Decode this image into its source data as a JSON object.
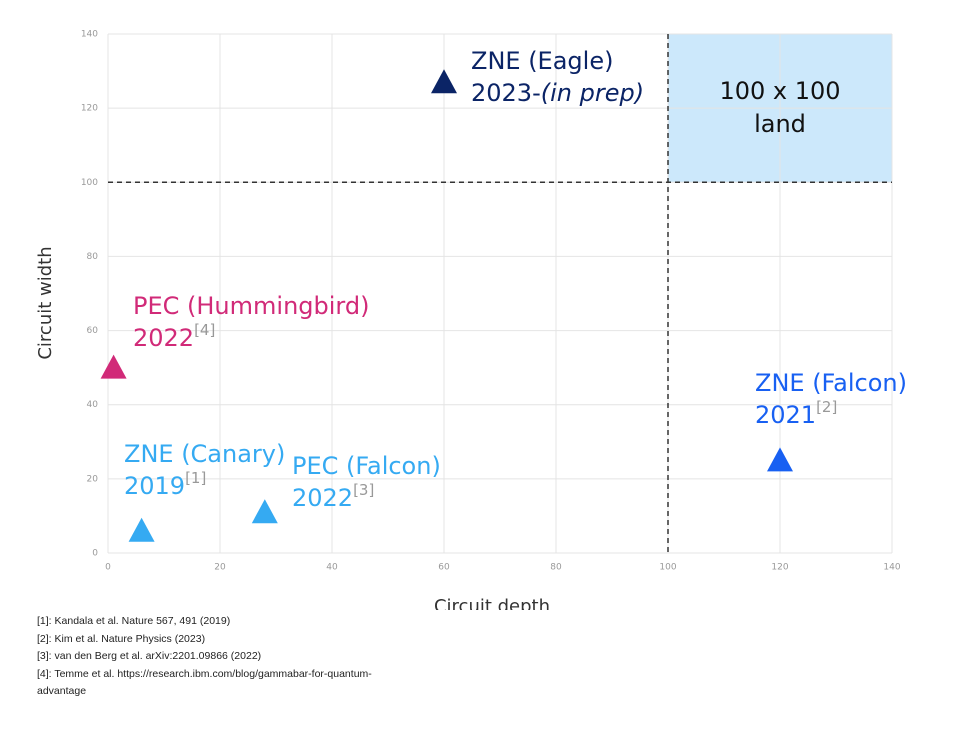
{
  "chart_data": {
    "type": "scatter",
    "xlabel": "Circuit depth",
    "ylabel": "Circuit width",
    "xlim": [
      0,
      140
    ],
    "ylim": [
      0,
      140
    ],
    "xticks": [
      0,
      20,
      40,
      60,
      80,
      100,
      120,
      140
    ],
    "yticks": [
      0,
      20,
      40,
      60,
      80,
      100,
      120,
      140
    ],
    "grid": true,
    "thresholds": {
      "x": 100,
      "y": 100
    },
    "region": {
      "x": [
        100,
        140
      ],
      "y": [
        100,
        140
      ],
      "color": "#cce8fb",
      "text": [
        "100 x 100",
        "land"
      ]
    },
    "series": [
      {
        "name": "ZNE (Eagle)",
        "color": "#0b2466",
        "x": [
          60
        ],
        "values": [
          127
        ],
        "year": "2023-",
        "note": "(in prep)"
      },
      {
        "name": "PEC (Hummingbird)",
        "color": "#d12a78",
        "x": [
          1
        ],
        "values": [
          50
        ],
        "year": "2022",
        "ref": "[4]"
      },
      {
        "name": "ZNE (Canary)",
        "color": "#35aaf2",
        "x": [
          6
        ],
        "values": [
          6
        ],
        "year": "2019",
        "ref": "[1]"
      },
      {
        "name": "PEC (Falcon)",
        "color": "#35aaf2",
        "x": [
          28
        ],
        "values": [
          11
        ],
        "year": "2022",
        "ref": "[3]"
      },
      {
        "name": "ZNE (Falcon)",
        "color": "#1860f2",
        "x": [
          120
        ],
        "values": [
          25
        ],
        "year": "2021",
        "ref": "[2]"
      }
    ]
  },
  "footnotes": [
    "[1]: Kandala et al. Nature 567, 491 (2019)",
    "[2]: Kim et al. Nature Physics (2023)",
    "[3]: van den Berg et al. arXiv:2201.09866 (2022)",
    "[4]: Temme et al.  https://research.ibm.com/blog/gammabar-for-quantum-advantage"
  ]
}
